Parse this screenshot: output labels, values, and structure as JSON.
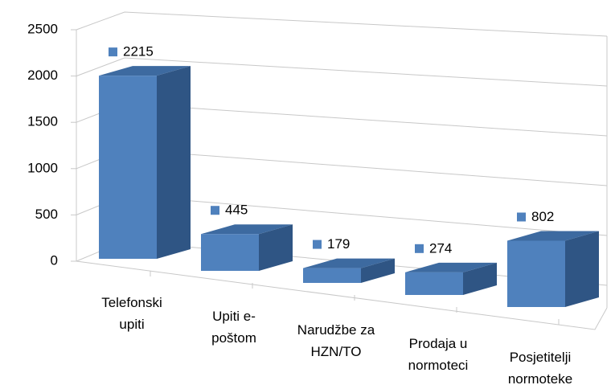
{
  "chart_data": {
    "type": "bar3d",
    "categories": [
      "Telefonski\nupiti",
      "Upiti e-\npoštom",
      "Narudžbe za\nHZN/TO",
      "Prodaja u\nnormoteci",
      "Posjetitelji\nnormoteke"
    ],
    "values": [
      2215,
      445,
      179,
      274,
      802
    ],
    "color": "#4f81bd",
    "ylim": [
      0,
      2500
    ],
    "yticks": [
      0,
      500,
      1000,
      1500,
      2000,
      2500
    ],
    "grid": true
  }
}
